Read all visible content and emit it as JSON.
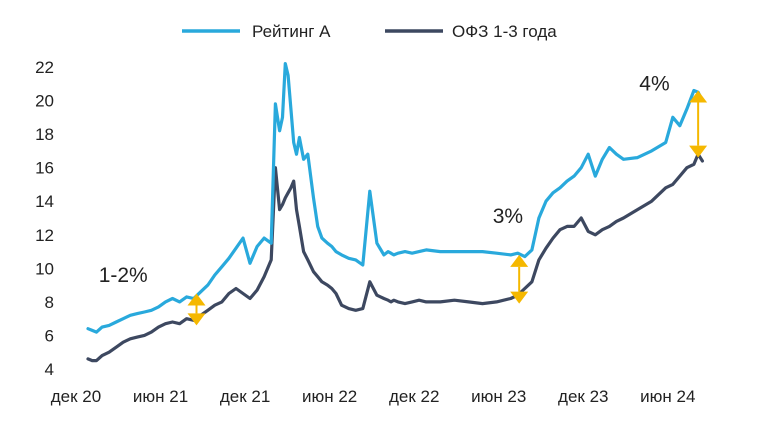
{
  "chart_data": {
    "type": "line",
    "title": "",
    "xlabel": "",
    "ylabel": "",
    "ylim": [
      4,
      22
    ],
    "yticks": [
      4,
      6,
      8,
      10,
      12,
      14,
      16,
      18,
      20,
      22
    ],
    "x_tick_labels": [
      "дек 20",
      "июн 21",
      "дек 21",
      "июн 22",
      "дек 22",
      "июн 23",
      "дек 23",
      "июн 24"
    ],
    "x_tick_positions": [
      0,
      6,
      12,
      18,
      24,
      30,
      36,
      42
    ],
    "legend_position": "top-center",
    "series": [
      {
        "name": "Рейтинг А",
        "color": "#29a9dc",
        "x": [
          0,
          0.3,
          0.6,
          1,
          1.5,
          2,
          2.5,
          3,
          3.5,
          4,
          4.5,
          5,
          5.5,
          6,
          6.5,
          7,
          7.5,
          8,
          8.5,
          9,
          9.5,
          10,
          10.5,
          11,
          11.5,
          12,
          12.5,
          13,
          13.3,
          13.6,
          13.8,
          14,
          14.2,
          14.4,
          14.6,
          14.8,
          15,
          15.3,
          15.6,
          16,
          16.3,
          16.6,
          17,
          17.3,
          17.6,
          18,
          18.5,
          19,
          19.5,
          20,
          20.5,
          21,
          21.3,
          21.5,
          21.7,
          22,
          22.5,
          23,
          23.5,
          24,
          25,
          26,
          27,
          28,
          29,
          30,
          30.5,
          31,
          31.5,
          32,
          32.5,
          33,
          33.5,
          34,
          34.5,
          35,
          35.5,
          36,
          36.5,
          37,
          37.5,
          38,
          39,
          40,
          41,
          41.5,
          42,
          42.5,
          43,
          43.3,
          43.6
        ],
        "values": [
          6.4,
          6.3,
          6.2,
          6.5,
          6.6,
          6.8,
          7.0,
          7.2,
          7.3,
          7.4,
          7.5,
          7.7,
          8.0,
          8.2,
          8.0,
          8.3,
          8.2,
          8.6,
          9.0,
          9.6,
          10.1,
          10.6,
          11.2,
          11.8,
          10.3,
          11.3,
          11.8,
          11.5,
          19.8,
          18.2,
          19.0,
          22.2,
          21.5,
          19.5,
          17.5,
          16.8,
          17.8,
          16.5,
          16.8,
          14.2,
          12.5,
          11.8,
          11.5,
          11.3,
          11.0,
          10.8,
          10.6,
          10.5,
          10.2,
          14.6,
          11.5,
          10.8,
          11.0,
          10.9,
          10.8,
          10.9,
          11.0,
          10.9,
          11.0,
          11.1,
          11.0,
          11.0,
          11.0,
          11.0,
          10.9,
          10.8,
          10.9,
          10.7,
          11.1,
          13.0,
          14.0,
          14.5,
          14.8,
          15.2,
          15.5,
          16.0,
          16.8,
          15.5,
          16.5,
          17.2,
          16.8,
          16.5,
          16.6,
          17.0,
          17.5,
          19.0,
          18.5,
          19.5,
          20.6,
          20.5,
          20.0
        ]
      },
      {
        "name": "ОФЗ 1-3 года",
        "color": "#3d4860",
        "x": [
          0,
          0.3,
          0.6,
          1,
          1.5,
          2,
          2.5,
          3,
          3.5,
          4,
          4.5,
          5,
          5.5,
          6,
          6.5,
          7,
          7.5,
          8,
          8.5,
          9,
          9.5,
          10,
          10.5,
          11,
          11.5,
          12,
          12.5,
          13,
          13.3,
          13.6,
          13.8,
          14,
          14.2,
          14.4,
          14.6,
          14.8,
          15,
          15.3,
          15.6,
          16,
          16.3,
          16.6,
          17,
          17.3,
          17.6,
          18,
          18.5,
          19,
          19.5,
          20,
          20.5,
          21,
          21.3,
          21.5,
          21.7,
          22,
          22.5,
          23,
          23.5,
          24,
          25,
          26,
          27,
          28,
          29,
          30,
          30.5,
          31,
          31.5,
          32,
          32.5,
          33,
          33.5,
          34,
          34.5,
          35,
          35.5,
          36,
          36.5,
          37,
          37.5,
          38,
          39,
          40,
          41,
          41.5,
          42,
          42.5,
          43,
          43.3,
          43.6
        ],
        "values": [
          4.6,
          4.5,
          4.5,
          4.8,
          5.0,
          5.3,
          5.6,
          5.8,
          5.9,
          6.0,
          6.2,
          6.5,
          6.7,
          6.8,
          6.7,
          7.0,
          6.9,
          7.2,
          7.5,
          7.8,
          8.0,
          8.5,
          8.8,
          8.5,
          8.2,
          8.7,
          9.5,
          10.5,
          16.0,
          13.5,
          13.8,
          14.2,
          14.5,
          14.8,
          15.2,
          13.5,
          12.5,
          11.0,
          10.5,
          9.8,
          9.5,
          9.2,
          9.0,
          8.8,
          8.5,
          7.8,
          7.6,
          7.5,
          7.6,
          9.2,
          8.4,
          8.2,
          8.1,
          8.0,
          8.1,
          8.0,
          7.9,
          8.0,
          8.1,
          8.0,
          8.0,
          8.1,
          8.0,
          7.9,
          8.0,
          8.2,
          8.4,
          8.8,
          9.2,
          10.5,
          11.2,
          11.8,
          12.3,
          12.5,
          12.5,
          13.0,
          12.2,
          12.0,
          12.3,
          12.5,
          12.8,
          13.0,
          13.5,
          14.0,
          14.8,
          15.0,
          15.5,
          16.0,
          16.2,
          16.8,
          16.4
        ]
      }
    ],
    "annotations": [
      {
        "text": "1-2%",
        "x": 2.5,
        "y": 9.2
      },
      {
        "text": "3%",
        "x": 29.8,
        "y": 12.7
      },
      {
        "text": "4%",
        "x": 40.2,
        "y": 20.6
      }
    ],
    "gap_arrows": [
      {
        "x": 7.7,
        "low": 6.6,
        "high": 8.5,
        "color": "#f5b800"
      },
      {
        "x": 30.6,
        "low": 7.9,
        "high": 10.8,
        "color": "#f5b800"
      },
      {
        "x": 43.3,
        "low": 16.6,
        "high": 20.6,
        "color": "#f5b800"
      }
    ]
  }
}
